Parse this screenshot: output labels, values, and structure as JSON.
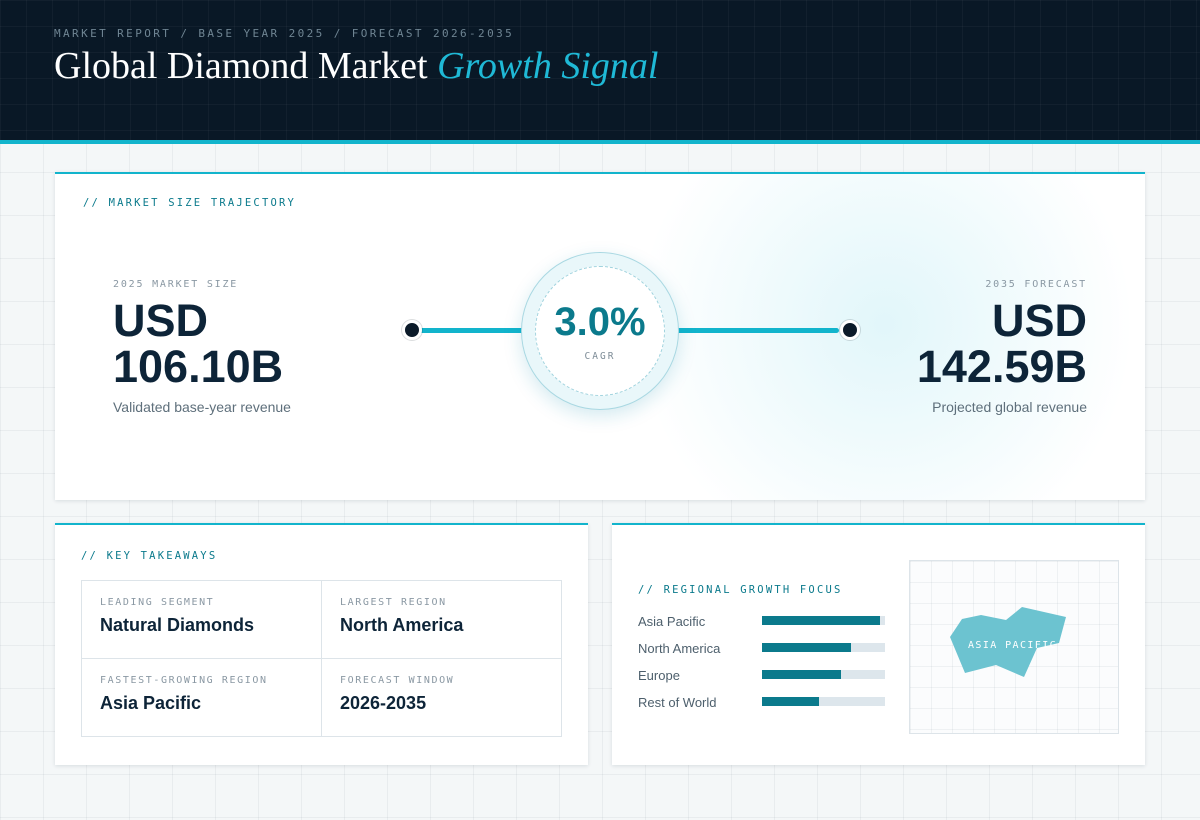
{
  "header": {
    "eyebrow": "MARKET REPORT / BASE YEAR 2025 / FORECAST 2026-2035",
    "title_main": "Global Diamond Market",
    "title_accent": "Growth Signal"
  },
  "trajectory": {
    "section_label": "// MARKET SIZE TRAJECTORY",
    "start": {
      "caption": "2025 MARKET SIZE",
      "currency": "USD",
      "value": "106.10B",
      "subtitle": "Validated base-year revenue"
    },
    "cagr": {
      "value": "3.0%",
      "caption": "CAGR"
    },
    "end": {
      "caption": "2035 FORECAST",
      "currency": "USD",
      "value": "142.59B",
      "subtitle": "Projected global revenue"
    }
  },
  "takeaways": {
    "section_label": "// KEY TAKEAWAYS",
    "items": [
      {
        "caption": "LEADING SEGMENT",
        "value": "Natural Diamonds"
      },
      {
        "caption": "LARGEST REGION",
        "value": "North America"
      },
      {
        "caption": "FASTEST-GROWING REGION",
        "value": "Asia Pacific"
      },
      {
        "caption": "FORECAST WINDOW",
        "value": "2026-2035"
      }
    ]
  },
  "regional": {
    "section_label": "// REGIONAL GROWTH FOCUS",
    "bars": [
      {
        "label": "Asia Pacific",
        "level": 0.96
      },
      {
        "label": "North America",
        "level": 0.72
      },
      {
        "label": "Europe",
        "level": 0.64
      },
      {
        "label": "Rest of World",
        "level": 0.46
      }
    ],
    "map_label": "ASIA PACIFIC",
    "map_color": "#6cc3d0"
  },
  "colors": {
    "accent": "#12b4cc",
    "teal": "#0b7a8c",
    "navy": "#091826"
  }
}
